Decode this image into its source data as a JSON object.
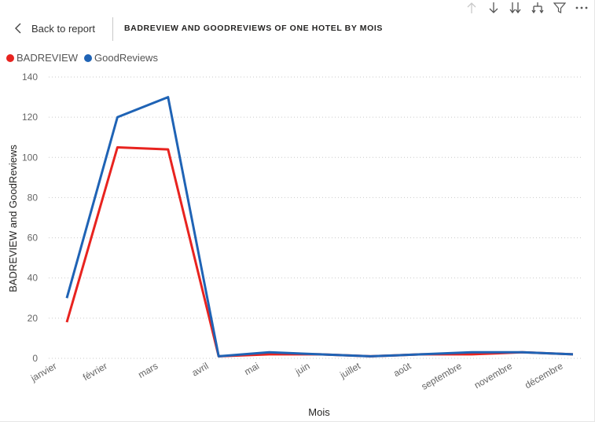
{
  "header": {
    "back_label": "Back to report",
    "title": "BADREVIEW AND GOODREVIEWS OF ONE HOTEL BY MOIS"
  },
  "toolbar": {
    "icons": [
      "arrow-up-icon",
      "arrow-down-icon",
      "double-arrow-down-icon",
      "expand-hierarchy-icon",
      "filter-icon",
      "more-options-icon"
    ]
  },
  "colors": {
    "bad": "#e8231f",
    "good": "#1f63b5"
  },
  "chart_data": {
    "type": "line",
    "title": "BADREVIEW AND GOODREVIEWS OF ONE HOTEL BY MOIS",
    "xlabel": "Mois",
    "ylabel": "BADREVIEW and GoodReviews",
    "categories": [
      "janvier",
      "février",
      "mars",
      "avril",
      "mai",
      "juin",
      "juillet",
      "août",
      "septembre",
      "novembre",
      "décembre"
    ],
    "ylim": [
      0,
      140
    ],
    "yticks": [
      0,
      20,
      40,
      60,
      80,
      100,
      120,
      140
    ],
    "grid": true,
    "legend_position": "top-left",
    "series": [
      {
        "name": "BADREVIEW",
        "color": "#e8231f",
        "values": [
          18,
          105,
          104,
          1,
          2,
          2,
          1,
          2,
          2,
          3,
          2
        ]
      },
      {
        "name": "GoodReviews",
        "color": "#1f63b5",
        "values": [
          30,
          120,
          130,
          1,
          3,
          2,
          1,
          2,
          3,
          3,
          2
        ]
      }
    ]
  }
}
